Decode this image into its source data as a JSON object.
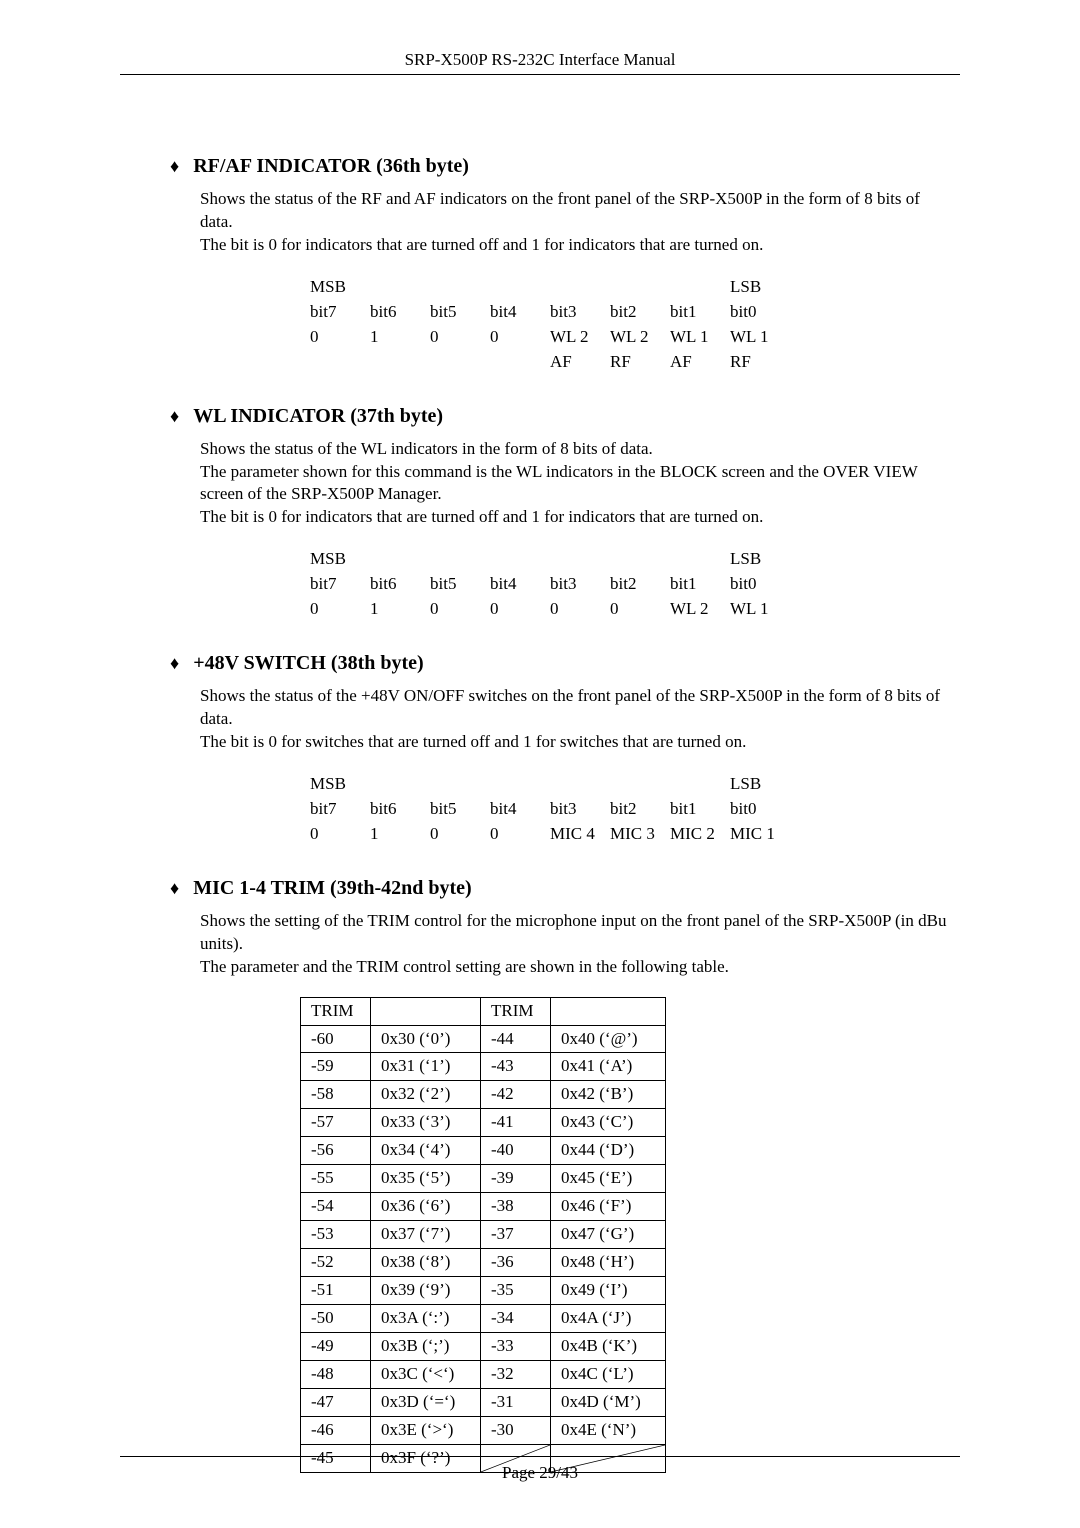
{
  "header": "SRP-X500P RS-232C Interface Manual",
  "footer": "Page 29/43",
  "sections": {
    "rfaf": {
      "title": "RF/AF INDICATOR (36th byte)",
      "para1": "Shows the status of the RF and AF indicators on the front panel of the SRP-X500P in the form of 8 bits of data.",
      "para2": "The bit is 0 for indicators that are turned off and 1 for indicators that are turned on.",
      "table": {
        "msb": "MSB",
        "lsb": "LSB",
        "h": [
          "bit7",
          "bit6",
          "bit5",
          "bit4",
          "bit3",
          "bit2",
          "bit1",
          "bit0"
        ],
        "r1": [
          "0",
          "1",
          "0",
          "0",
          "WL 2",
          "WL 2",
          "WL 1",
          "WL 1"
        ],
        "r2": [
          "",
          "",
          "",
          "",
          "AF",
          "RF",
          "AF",
          "RF"
        ]
      }
    },
    "wl": {
      "title": "WL INDICATOR (37th byte)",
      "para1": "Shows the status of the WL indicators in the form of 8 bits of data.",
      "para2": "The parameter shown for this command is the WL indicators in the BLOCK screen and the OVER VIEW screen of the SRP-X500P Manager.",
      "para3": "The bit is 0 for indicators that are turned off and 1 for indicators that are turned on.",
      "table": {
        "msb": "MSB",
        "lsb": "LSB",
        "h": [
          "bit7",
          "bit6",
          "bit5",
          "bit4",
          "bit3",
          "bit2",
          "bit1",
          "bit0"
        ],
        "r1": [
          "0",
          "1",
          "0",
          "0",
          "0",
          "0",
          "WL 2",
          "WL 1"
        ]
      }
    },
    "v48": {
      "title": "+48V SWITCH (38th byte)",
      "para1": "Shows the status of the +48V ON/OFF switches on the front panel of the SRP-X500P in the form of 8 bits of data.",
      "para2": "The bit is 0 for switches that are turned off and 1 for switches that are turned on.",
      "table": {
        "msb": "MSB",
        "lsb": "LSB",
        "h": [
          "bit7",
          "bit6",
          "bit5",
          "bit4",
          "bit3",
          "bit2",
          "bit1",
          "bit0"
        ],
        "r1": [
          "0",
          "1",
          "0",
          "0",
          "MIC 4",
          "MIC 3",
          "MIC 2",
          "MIC 1"
        ]
      }
    },
    "trim": {
      "title": "MIC 1-4 TRIM (39th-42nd byte)",
      "para1": "Shows the setting of the TRIM control for the microphone input on the front panel of the SRP-X500P (in dBu units).",
      "para2": "The parameter and the TRIM control setting are shown in the following table.",
      "headers": {
        "a": "TRIM",
        "b": "TRIM"
      },
      "rows": [
        [
          "-60",
          "0x30 (‘0’)",
          "-44",
          "0x40 (‘@’)"
        ],
        [
          "-59",
          "0x31 (‘1’)",
          "-43",
          "0x41 (‘A’)"
        ],
        [
          "-58",
          "0x32 (‘2’)",
          "-42",
          "0x42 (‘B’)"
        ],
        [
          "-57",
          "0x33 (‘3’)",
          "-41",
          "0x43 (‘C’)"
        ],
        [
          "-56",
          "0x34 (‘4’)",
          "-40",
          "0x44 (‘D’)"
        ],
        [
          "-55",
          "0x35 (‘5’)",
          "-39",
          "0x45 (‘E’)"
        ],
        [
          "-54",
          "0x36 (‘6’)",
          "-38",
          "0x46 (‘F’)"
        ],
        [
          "-53",
          "0x37 (‘7’)",
          "-37",
          "0x47 (‘G’)"
        ],
        [
          "-52",
          "0x38 (‘8’)",
          "-36",
          "0x48 (‘H’)"
        ],
        [
          "-51",
          "0x39 (‘9’)",
          "-35",
          "0x49 (‘I’)"
        ],
        [
          "-50",
          "0x3A (‘:’)",
          "-34",
          "0x4A (‘J’)"
        ],
        [
          "-49",
          "0x3B (‘;’)",
          "-33",
          "0x4B (‘K’)"
        ],
        [
          "-48",
          "0x3C (‘<‘)",
          "-32",
          "0x4C (‘L’)"
        ],
        [
          "-47",
          "0x3D (‘=‘)",
          "-31",
          "0x4D (‘M’)"
        ],
        [
          "-46",
          "0x3E (‘>‘)",
          "-30",
          "0x4E (‘N’)"
        ],
        [
          "-45",
          "0x3F (‘?’)",
          "",
          ""
        ]
      ]
    }
  }
}
